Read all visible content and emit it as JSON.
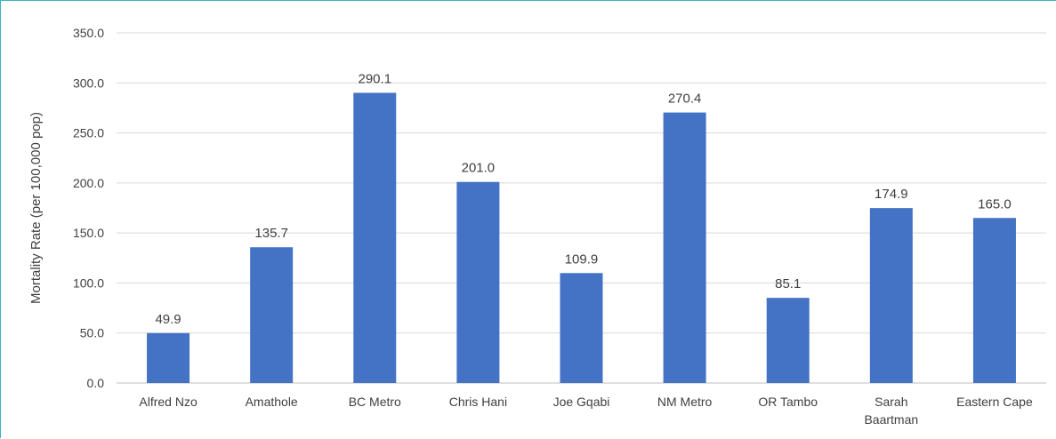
{
  "chart_data": {
    "type": "bar",
    "categories": [
      "Alfred Nzo",
      "Amathole",
      "BC Metro",
      "Chris Hani",
      "Joe Gqabi",
      "NM Metro",
      "OR Tambo",
      "Sarah Baartman",
      "Eastern Cape"
    ],
    "category_lines": [
      [
        "Alfred Nzo"
      ],
      [
        "Amathole"
      ],
      [
        "BC Metro"
      ],
      [
        "Chris Hani"
      ],
      [
        "Joe Gqabi"
      ],
      [
        "NM Metro"
      ],
      [
        "OR Tambo"
      ],
      [
        "Sarah",
        "Baartman"
      ],
      [
        "Eastern Cape"
      ]
    ],
    "values": [
      49.9,
      135.7,
      290.1,
      201.0,
      109.9,
      270.4,
      85.1,
      174.9,
      165.0
    ],
    "value_labels": [
      "49.9",
      "135.7",
      "290.1",
      "201.0",
      "109.9",
      "270.4",
      "85.1",
      "174.9",
      "165.0"
    ],
    "title": "",
    "xlabel": "",
    "ylabel": "Mortality Rate (per 100,000 pop)",
    "ylim": [
      0,
      350
    ],
    "yticks": [
      0,
      50,
      100,
      150,
      200,
      250,
      300,
      350
    ],
    "ytick_labels": [
      "0.0",
      "50.0",
      "100.0",
      "150.0",
      "200.0",
      "250.0",
      "300.0",
      "350.0"
    ],
    "grid": true,
    "legend": "none",
    "colors": {
      "bar": "#4472c4",
      "grid": "#d9d9d9",
      "text": "#404040",
      "frame": "#38b8c4"
    }
  }
}
